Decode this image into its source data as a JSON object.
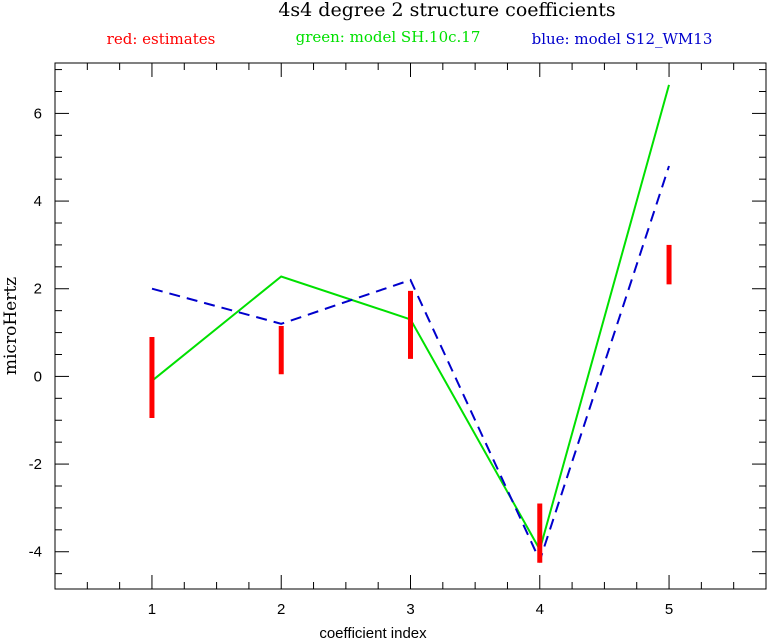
{
  "chart_data": {
    "type": "line",
    "title": "4s4 degree 2 structure coefficients",
    "legend": {
      "placement": "top",
      "entries": [
        {
          "label": "red: estimates",
          "color": "#ff0000"
        },
        {
          "label": "green: model SH.10c.17",
          "color": "#00e000"
        },
        {
          "label": "blue: model S12_WM13",
          "color": "#0000cc"
        }
      ]
    },
    "xlabel": "coefficient index",
    "ylabel": "microHertz",
    "xlim": [
      0.25,
      5.75
    ],
    "ylim": [
      -4.85,
      7.15
    ],
    "xticks": [
      1,
      2,
      3,
      4,
      5
    ],
    "yticks": [
      -4,
      -2,
      0,
      2,
      4,
      6
    ],
    "grid": false,
    "estimates": [
      {
        "x": 1,
        "low": -0.95,
        "high": 0.9
      },
      {
        "x": 2,
        "low": 0.05,
        "high": 1.15
      },
      {
        "x": 3,
        "low": 0.4,
        "high": 1.95
      },
      {
        "x": 4,
        "low": -4.25,
        "high": -2.9
      },
      {
        "x": 5,
        "low": 2.1,
        "high": 3.0
      }
    ],
    "series": [
      {
        "name": "model SH.10c.17",
        "color": "#00e000",
        "dash": "solid",
        "x": [
          1,
          2,
          3,
          4,
          5
        ],
        "values": [
          -0.1,
          2.28,
          1.3,
          -3.95,
          6.65
        ]
      },
      {
        "name": "model S12_WM13",
        "color": "#0000cc",
        "dash": "dashed",
        "x": [
          1,
          2,
          3,
          4,
          5
        ],
        "values": [
          2.0,
          1.2,
          2.2,
          -4.2,
          4.8
        ]
      }
    ]
  }
}
